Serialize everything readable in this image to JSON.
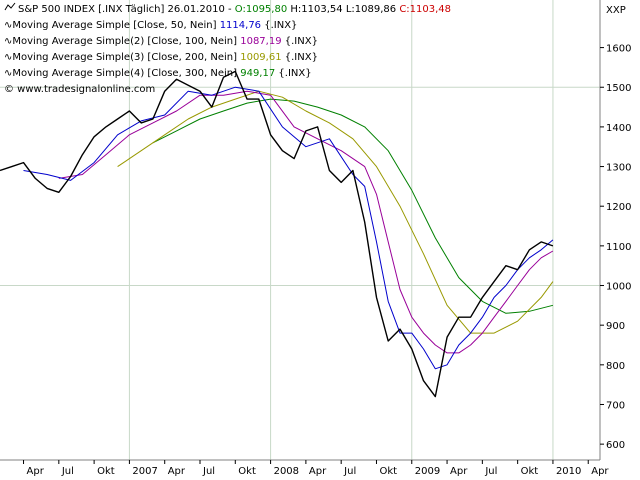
{
  "header": {
    "symbol": "S&P 500 INDEX [.INX Täglich]",
    "date": "26.01.2010",
    "open_label": "O:1095,80",
    "high_label": "H:1103,54",
    "low_label": "L:1089,86",
    "close_label": "C:1103,48",
    "currency": "XXP"
  },
  "legend": [
    {
      "label": "Moving Average Simple [Close, 50, Nein]",
      "value": "1114,76",
      "suffix": "{.INX}",
      "color": "#0000cc"
    },
    {
      "label": "Moving Average Simple(2) [Close, 100, Nein]",
      "value": "1087,19",
      "suffix": "{.INX}",
      "color": "#990099"
    },
    {
      "label": "Moving Average Simple(3) [Close, 200, Nein]",
      "value": "1009,61",
      "suffix": "{.INX}",
      "color": "#999900"
    },
    {
      "label": "Moving Average Simple(4) [Close, 300, Nein]",
      "value": "949,17",
      "suffix": "{.INX}",
      "color": "#008000"
    }
  ],
  "watermark": "© www.tradesignalonline.com",
  "colors": {
    "price": "#000000",
    "grid": "#c8d8c8",
    "open_up": "#008000",
    "close_down": "#cc0000"
  },
  "chart_data": {
    "type": "line",
    "title": "S&P 500 INDEX [.INX Täglich]",
    "ylim": [
      560,
      1720
    ],
    "y_ticks": [
      600,
      700,
      800,
      900,
      1000,
      1100,
      1200,
      1300,
      1400,
      1500,
      1600
    ],
    "y_tick_labels": [
      "600",
      "700",
      "800",
      "900",
      "1000",
      "1100",
      "1200",
      "1300",
      "1400",
      "1500",
      "1600"
    ],
    "x_tick_labels": [
      "Apr",
      "Jul",
      "Okt",
      "2007",
      "Apr",
      "Jul",
      "Okt",
      "2008",
      "Apr",
      "Jul",
      "Okt",
      "2009",
      "Apr",
      "Jul",
      "Okt",
      "2010",
      "Apr"
    ],
    "x_tick_months": [
      "2006-04",
      "2006-07",
      "2006-10",
      "2007-01",
      "2007-04",
      "2007-07",
      "2007-10",
      "2008-01",
      "2008-04",
      "2008-07",
      "2008-10",
      "2009-01",
      "2009-04",
      "2009-07",
      "2009-10",
      "2010-01",
      "2010-04"
    ],
    "x_range": [
      "2006-02",
      "2010-05"
    ],
    "grid": true,
    "series": [
      {
        "name": "S&P 500 INDEX",
        "color": "#000000",
        "x": [
          "2006-02",
          "2006-03",
          "2006-04",
          "2006-05",
          "2006-06",
          "2006-07",
          "2006-08",
          "2006-09",
          "2006-10",
          "2006-11",
          "2006-12",
          "2007-01",
          "2007-02",
          "2007-03",
          "2007-04",
          "2007-05",
          "2007-06",
          "2007-07",
          "2007-08",
          "2007-09",
          "2007-10",
          "2007-11",
          "2007-12",
          "2008-01",
          "2008-02",
          "2008-03",
          "2008-04",
          "2008-05",
          "2008-06",
          "2008-07",
          "2008-08",
          "2008-09",
          "2008-10",
          "2008-11",
          "2008-12",
          "2009-01",
          "2009-02",
          "2009-03",
          "2009-04",
          "2009-05",
          "2009-06",
          "2009-07",
          "2009-08",
          "2009-09",
          "2009-10",
          "2009-11",
          "2009-12",
          "2010-01"
        ],
        "y": [
          1290,
          1300,
          1310,
          1270,
          1245,
          1235,
          1275,
          1330,
          1375,
          1400,
          1420,
          1440,
          1410,
          1420,
          1490,
          1520,
          1505,
          1490,
          1450,
          1525,
          1540,
          1470,
          1470,
          1380,
          1340,
          1320,
          1390,
          1400,
          1290,
          1260,
          1290,
          1160,
          970,
          860,
          890,
          840,
          760,
          720,
          870,
          920,
          920,
          970,
          1010,
          1050,
          1040,
          1090,
          1110,
          1100
        ]
      },
      {
        "name": "Moving Average Simple [Close, 50, Nein]",
        "color": "#0000cc",
        "x": [
          "2006-04",
          "2006-06",
          "2006-08",
          "2006-10",
          "2006-12",
          "2007-02",
          "2007-04",
          "2007-06",
          "2007-08",
          "2007-10",
          "2007-12",
          "2008-02",
          "2008-04",
          "2008-06",
          "2008-08",
          "2008-09",
          "2008-10",
          "2008-11",
          "2008-12",
          "2009-01",
          "2009-02",
          "2009-03",
          "2009-04",
          "2009-05",
          "2009-06",
          "2009-07",
          "2009-08",
          "2009-09",
          "2009-10",
          "2009-11",
          "2009-12",
          "2010-01"
        ],
        "y": [
          1290,
          1280,
          1265,
          1310,
          1380,
          1415,
          1430,
          1490,
          1480,
          1500,
          1490,
          1400,
          1350,
          1370,
          1280,
          1250,
          1110,
          960,
          880,
          880,
          840,
          790,
          800,
          850,
          880,
          920,
          970,
          1000,
          1040,
          1070,
          1090,
          1115
        ]
      },
      {
        "name": "Moving Average Simple(2) [Close, 100, Nein]",
        "color": "#990099",
        "x": [
          "2006-07",
          "2006-09",
          "2006-11",
          "2007-01",
          "2007-03",
          "2007-05",
          "2007-07",
          "2007-09",
          "2007-11",
          "2008-01",
          "2008-03",
          "2008-05",
          "2008-07",
          "2008-09",
          "2008-10",
          "2008-11",
          "2008-12",
          "2009-01",
          "2009-02",
          "2009-03",
          "2009-04",
          "2009-05",
          "2009-06",
          "2009-07",
          "2009-08",
          "2009-09",
          "2009-10",
          "2009-11",
          "2009-12",
          "2010-01"
        ],
        "y": [
          1270,
          1280,
          1330,
          1380,
          1410,
          1440,
          1480,
          1480,
          1490,
          1480,
          1400,
          1370,
          1340,
          1300,
          1230,
          1110,
          990,
          920,
          880,
          850,
          830,
          830,
          850,
          880,
          920,
          960,
          1000,
          1040,
          1070,
          1087
        ]
      },
      {
        "name": "Moving Average Simple(3) [Close, 200, Nein]",
        "color": "#999900",
        "x": [
          "2006-12",
          "2007-02",
          "2007-04",
          "2007-06",
          "2007-08",
          "2007-10",
          "2007-12",
          "2008-02",
          "2008-04",
          "2008-06",
          "2008-08",
          "2008-10",
          "2008-12",
          "2009-02",
          "2009-04",
          "2009-06",
          "2009-08",
          "2009-10",
          "2009-12",
          "2010-01"
        ],
        "y": [
          1300,
          1340,
          1380,
          1420,
          1450,
          1470,
          1490,
          1475,
          1440,
          1410,
          1370,
          1300,
          1200,
          1080,
          950,
          880,
          880,
          910,
          970,
          1010
        ]
      },
      {
        "name": "Moving Average Simple(4) [Close, 300, Nein]",
        "color": "#008000",
        "x": [
          "2007-03",
          "2007-05",
          "2007-07",
          "2007-09",
          "2007-11",
          "2008-01",
          "2008-03",
          "2008-05",
          "2008-07",
          "2008-09",
          "2008-11",
          "2009-01",
          "2009-03",
          "2009-05",
          "2009-07",
          "2009-09",
          "2009-11",
          "2010-01"
        ],
        "y": [
          1360,
          1390,
          1420,
          1440,
          1460,
          1470,
          1465,
          1450,
          1430,
          1400,
          1340,
          1240,
          1120,
          1020,
          960,
          930,
          935,
          950
        ]
      }
    ]
  }
}
